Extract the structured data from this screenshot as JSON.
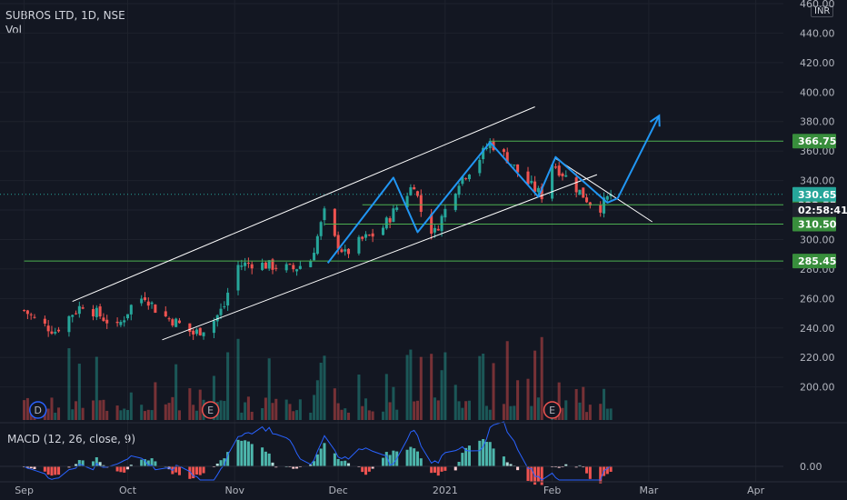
{
  "header": {
    "symbol_line": "SUBROS LTD, 1D, NSE",
    "volume_label": "Vol",
    "macd_label": "MACD (12, 26, close, 9)",
    "currency": "INR"
  },
  "colors": {
    "background": "#131722",
    "grid": "#1e222d",
    "up": "#26a69a",
    "down": "#ef5350",
    "pattern_line": "#2196f3",
    "channel_line": "#ffffff",
    "level_line": "#4caf50",
    "level_tag": "#388e3c",
    "current_tag": "#26a69a",
    "macd_line": "#2962ff",
    "signal_line": "#ff6d00"
  },
  "chart_data": {
    "type": "candlestick",
    "title": "SUBROS LTD, 1D, NSE",
    "y_axis": {
      "range": [
        185,
        460
      ],
      "ticks": [
        "460.00",
        "440.00",
        "420.00",
        "400.00",
        "380.00",
        "360.00",
        "340.00",
        "320.00",
        "300.00",
        "280.00",
        "260.00",
        "240.00",
        "220.00",
        "200.00"
      ]
    },
    "x_axis": {
      "ticks": [
        {
          "label": "Sep",
          "date": "2020-09-01"
        },
        {
          "label": "Oct",
          "date": "2020-10-01"
        },
        {
          "label": "Nov",
          "date": "2020-11-01"
        },
        {
          "label": "Dec",
          "date": "2020-12-01"
        },
        {
          "label": "2021",
          "date": "2021-01-01"
        },
        {
          "label": "Feb",
          "date": "2021-02-01"
        },
        {
          "label": "Mar",
          "date": "2021-03-01"
        },
        {
          "label": "Apr",
          "date": "2021-04-01"
        }
      ]
    },
    "price_path": [
      {
        "date": "2020-09-01",
        "close": 252
      },
      {
        "date": "2020-09-05",
        "close": 244
      },
      {
        "date": "2020-09-10",
        "close": 238
      },
      {
        "date": "2020-09-15",
        "close": 250
      },
      {
        "date": "2020-09-18",
        "close": 256
      },
      {
        "date": "2020-09-22",
        "close": 250
      },
      {
        "date": "2020-09-28",
        "close": 240
      },
      {
        "date": "2020-10-02",
        "close": 255
      },
      {
        "date": "2020-10-06",
        "close": 262
      },
      {
        "date": "2020-10-10",
        "close": 250
      },
      {
        "date": "2020-10-15",
        "close": 244
      },
      {
        "date": "2020-10-20",
        "close": 236
      },
      {
        "date": "2020-10-25",
        "close": 242
      },
      {
        "date": "2020-10-29",
        "close": 255
      },
      {
        "date": "2020-11-01",
        "close": 282
      },
      {
        "date": "2020-11-06",
        "close": 284
      },
      {
        "date": "2020-11-12",
        "close": 282
      },
      {
        "date": "2020-11-18",
        "close": 280
      },
      {
        "date": "2020-11-23",
        "close": 286
      },
      {
        "date": "2020-11-27",
        "close": 318
      },
      {
        "date": "2020-11-30",
        "close": 300
      },
      {
        "date": "2020-12-03",
        "close": 290
      },
      {
        "date": "2020-12-08",
        "close": 300
      },
      {
        "date": "2020-12-13",
        "close": 305
      },
      {
        "date": "2020-12-18",
        "close": 322
      },
      {
        "date": "2020-12-23",
        "close": 338
      },
      {
        "date": "2020-12-26",
        "close": 310
      },
      {
        "date": "2020-12-29",
        "close": 305
      },
      {
        "date": "2021-01-01",
        "close": 320
      },
      {
        "date": "2021-01-05",
        "close": 340
      },
      {
        "date": "2021-01-10",
        "close": 352
      },
      {
        "date": "2021-01-14",
        "close": 366
      },
      {
        "date": "2021-01-19",
        "close": 355
      },
      {
        "date": "2021-01-24",
        "close": 340
      },
      {
        "date": "2021-01-29",
        "close": 330
      },
      {
        "date": "2021-02-01",
        "close": 352
      },
      {
        "date": "2021-02-04",
        "close": 345
      },
      {
        "date": "2021-02-08",
        "close": 335
      },
      {
        "date": "2021-02-12",
        "close": 325
      },
      {
        "date": "2021-02-15",
        "close": 322
      },
      {
        "date": "2021-02-18",
        "close": 330.65
      }
    ],
    "drawings": {
      "channel_upper": [
        {
          "date": "2020-09-15",
          "price": 258
        },
        {
          "date": "2021-01-27",
          "price": 390
        }
      ],
      "channel_lower": [
        {
          "date": "2020-10-11",
          "price": 232
        },
        {
          "date": "2021-02-14",
          "price": 344
        }
      ],
      "wedge_upper": [
        {
          "date": "2021-02-02",
          "price": 355
        },
        {
          "date": "2021-03-02",
          "price": 312
        }
      ],
      "zigzag": [
        {
          "date": "2020-11-28",
          "price": 284
        },
        {
          "date": "2020-12-17",
          "price": 342
        },
        {
          "date": "2020-12-24",
          "price": 305
        },
        {
          "date": "2021-01-14",
          "price": 366
        },
        {
          "date": "2021-01-28",
          "price": 329
        },
        {
          "date": "2021-02-02",
          "price": 356
        },
        {
          "date": "2021-02-17",
          "price": 325
        },
        {
          "date": "2021-02-20",
          "price": 328
        },
        {
          "date": "2021-03-04",
          "price": 384
        }
      ]
    },
    "price_levels": [
      {
        "label": "366.75",
        "price": 366.75,
        "from_date": "2021-01-14"
      },
      {
        "label": "323.55",
        "price": 323.55,
        "from_date": "2020-12-08"
      },
      {
        "label": "310.50",
        "price": 310.5,
        "from_date": "2020-11-27"
      },
      {
        "label": "285.45",
        "price": 285.45,
        "from_date": "2020-09-01"
      }
    ],
    "current": {
      "label": "330.65",
      "price": 330.65,
      "countdown": "02:58:41"
    },
    "events": [
      {
        "label": "D",
        "date": "2020-09-05",
        "color": "#2962ff"
      },
      {
        "label": "E",
        "date": "2020-10-25",
        "color": "#ef5350"
      },
      {
        "label": "E",
        "date": "2021-02-01",
        "color": "#ef5350"
      }
    ],
    "macd_axis": {
      "zero_label": "0.00"
    }
  }
}
